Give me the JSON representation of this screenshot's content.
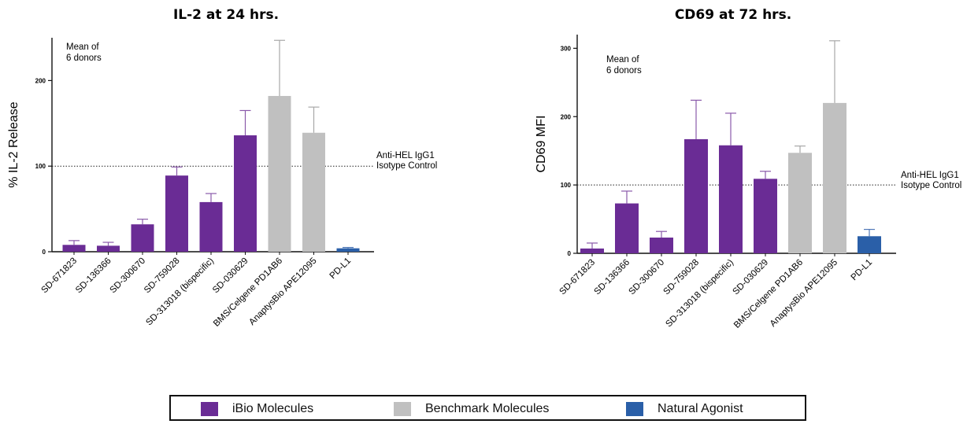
{
  "colors": {
    "ibio": "#6a2c95",
    "benchmark": "#c0c0c0",
    "natural": "#2a5fa8",
    "axis": "#111111",
    "errorbar_ibio": "#8a5aaa",
    "errorbar_benchmark": "#a8a8a8",
    "errorbar_natural": "#5078b8"
  },
  "legend": {
    "items": [
      {
        "label": "iBio Molecules",
        "color_key": "ibio"
      },
      {
        "label": "Benchmark Molecules",
        "color_key": "benchmark"
      },
      {
        "label": "Natural Agonist",
        "color_key": "natural"
      }
    ]
  },
  "chart_data": [
    {
      "type": "bar",
      "title": "IL-2 at 24 hrs.",
      "ylabel": "% IL-2 Release",
      "ylim": [
        0,
        250
      ],
      "yticks": [
        0,
        100,
        200
      ],
      "annotation": [
        "Mean of",
        "6 donors"
      ],
      "reference_line": {
        "value": 100,
        "label": [
          "Anti-HEL IgG1",
          "Isotype Control"
        ]
      },
      "categories": [
        "SD-671823",
        "SD-136366",
        "SD-300670",
        "SD-759028",
        "SD-313018 (bispecific)",
        "SD-030629",
        "BMS/Celgene PD1AB6",
        "AnaptysBio APE12095",
        "PD-L1"
      ],
      "values": [
        8,
        7,
        32,
        89,
        58,
        136,
        182,
        139,
        4
      ],
      "errors": [
        5,
        4,
        6,
        10,
        10,
        29,
        65,
        30,
        1
      ],
      "groups": [
        "ibio",
        "ibio",
        "ibio",
        "ibio",
        "ibio",
        "ibio",
        "benchmark",
        "benchmark",
        "natural"
      ]
    },
    {
      "type": "bar",
      "title": "CD69 at 72 hrs.",
      "ylabel": "CD69 MFI",
      "ylim": [
        0,
        320
      ],
      "yticks": [
        0,
        100,
        200,
        300
      ],
      "annotation": [
        "Mean of",
        "6 donors"
      ],
      "reference_line": {
        "value": 100,
        "label": [
          "Anti-HEL IgG1",
          "Isotype Control"
        ]
      },
      "categories": [
        "SD-671823",
        "SD-136366",
        "SD-300670",
        "SD-759028",
        "SD-313018 (bispecific)",
        "SD-030629",
        "BMS/Celgene PD1AB6",
        "AnaptysBio APE12095",
        "PD-L1"
      ],
      "values": [
        7,
        73,
        23,
        167,
        158,
        109,
        147,
        220,
        25
      ],
      "errors": [
        8,
        18,
        9,
        57,
        47,
        11,
        10,
        91,
        10
      ],
      "groups": [
        "ibio",
        "ibio",
        "ibio",
        "ibio",
        "ibio",
        "ibio",
        "benchmark",
        "benchmark",
        "natural"
      ]
    }
  ]
}
